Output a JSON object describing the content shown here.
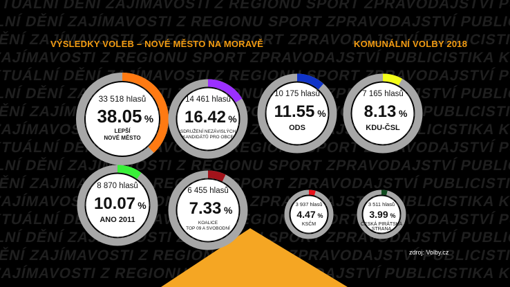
{
  "background_text_line": "AKTUÁLNÍ DĚNÍ ZAJÍMAVOSTI Z REGIONU SPORT ZPRAVODAJSTVÍ PUBLICISTIKA KULTURA NOVINKY",
  "chart_data": {
    "type": "pie",
    "title": "VÝSLEDKY VOLEB – NOVÉ MĚSTO NA MORAVĚ",
    "subtitle": "KOMUNÁLNÍ VOLBY 2018",
    "source": "zdroj: Volby.cz",
    "votes_label": "hlasů",
    "parties": [
      {
        "label_lines": [
          "LEPŠÍ",
          "NOVÉ MĚSTO"
        ],
        "votes": "33 518",
        "percent": "38.05",
        "value": 38.05,
        "color": "#ff7a12"
      },
      {
        "label_lines": [
          "SDRUŽENÍ NEZÁVISLÝCH",
          "KANDIDÁTŮ PRO OBCE"
        ],
        "votes": "14 461",
        "percent": "16.42",
        "value": 16.42,
        "color": "#9b30ff"
      },
      {
        "label_lines": [
          "ODS"
        ],
        "votes": "10 175",
        "percent": "11.55",
        "value": 11.55,
        "color": "#1034c8"
      },
      {
        "label_lines": [
          "KDU-ČSL"
        ],
        "votes": "7 165",
        "percent": "8.13",
        "value": 8.13,
        "color": "#f4ff1a"
      },
      {
        "label_lines": [
          "ANO 2011"
        ],
        "votes": "8 870",
        "percent": "10.07",
        "value": 10.07,
        "color": "#39f039"
      },
      {
        "label_lines": [
          "KOALICE",
          "TOP 09 A SVOBODNÍ"
        ],
        "votes": "6 455",
        "percent": "7.33",
        "value": 7.33,
        "color": "#a3131b"
      },
      {
        "label_lines": [
          "KSČM"
        ],
        "votes": "3 937",
        "percent": "4.47",
        "value": 4.47,
        "color": "#e8101a"
      },
      {
        "label_lines": [
          "ČESKÁ PIRÁTSKÁ",
          "STRANA"
        ],
        "votes": "3 511",
        "percent": "3.99",
        "value": 3.99,
        "color": "#0f4a1e"
      }
    ]
  }
}
